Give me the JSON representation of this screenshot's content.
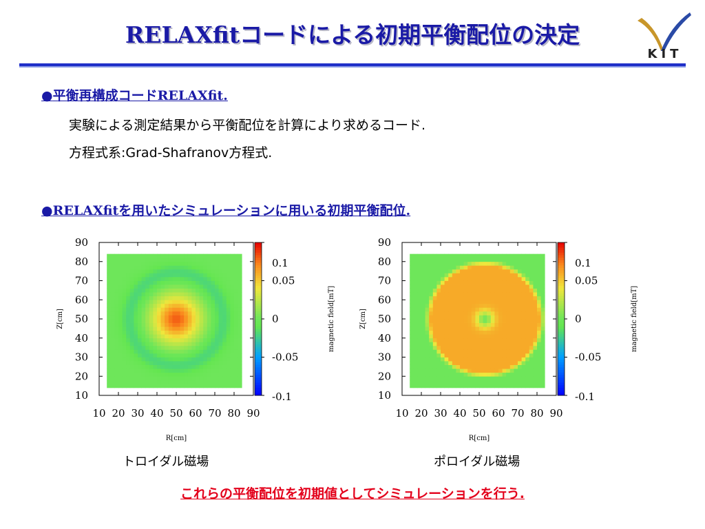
{
  "slide": {
    "title": "RELAXfitコードによる初期平衡配位の決定",
    "logo_text": "KIT",
    "section1": {
      "bullet": "●",
      "heading": "平衡再構成コードRELAXfit.",
      "lines": [
        "実験による測定結果から平衡配位を計算により求めるコード.",
        "方程式系:Grad-Shafranov方程式."
      ]
    },
    "section2": {
      "bullet": "●",
      "heading": "RELAXfitを用いたシミュレーションに用いる初期平衡配位."
    },
    "captions": [
      "トロイダル磁場",
      "ポロイダル磁場"
    ],
    "conclusion": "これらの平衡配位を初期値としてシミュレーションを行う."
  },
  "colors": {
    "title": "#1a1aa6",
    "accent_bar": "#1f2fc8",
    "conclusion": "#e3001b",
    "logo_gold": "#c8962a",
    "logo_blue": "#2a4aa6"
  },
  "chart_data": [
    {
      "type": "heatmap",
      "title": "",
      "caption": "トロイダル磁場",
      "xlabel": "R[cm]",
      "ylabel": "Z[cm]",
      "colorbar_label": "magnetic field[mT]",
      "xlim": [
        10,
        90
      ],
      "ylim": [
        10,
        90
      ],
      "x_ticks": [
        10,
        20,
        30,
        40,
        50,
        60,
        70,
        80,
        90
      ],
      "y_ticks": [
        10,
        20,
        30,
        40,
        50,
        60,
        70,
        80,
        90
      ],
      "colorbar_ticks": [
        "0.1",
        "0.05",
        "0",
        "-0.05",
        "-0.1"
      ],
      "colorbar_range": [
        -0.1,
        0.1
      ],
      "field": {
        "center": [
          50,
          50
        ],
        "domain": [
          [
            14,
            84
          ],
          [
            14,
            84
          ]
        ],
        "core_value": 0.08,
        "core_radius_cm": 14,
        "ring_value": -0.02,
        "ring_radius_cm": 24,
        "edge_value": 0
      }
    },
    {
      "type": "heatmap",
      "title": "",
      "caption": "ポロイダル磁場",
      "xlabel": "R[cm]",
      "ylabel": "Z[cm]",
      "colorbar_label": "magnetic field[mT]",
      "xlim": [
        10,
        90
      ],
      "ylim": [
        10,
        90
      ],
      "x_ticks": [
        10,
        20,
        30,
        40,
        50,
        60,
        70,
        80,
        90
      ],
      "y_ticks": [
        10,
        20,
        30,
        40,
        50,
        60,
        70,
        80,
        90
      ],
      "colorbar_ticks": [
        "0.1",
        "0.05",
        "0",
        "-0.05",
        "-0.1"
      ],
      "colorbar_range": [
        -0.1,
        0.1
      ],
      "field": {
        "center": [
          53,
          50
        ],
        "domain": [
          [
            14,
            84
          ],
          [
            14,
            84
          ]
        ],
        "outer_radius_cm": 30,
        "ring_value": 0.06,
        "center_value": 0.0,
        "edge_value": 0
      }
    }
  ]
}
